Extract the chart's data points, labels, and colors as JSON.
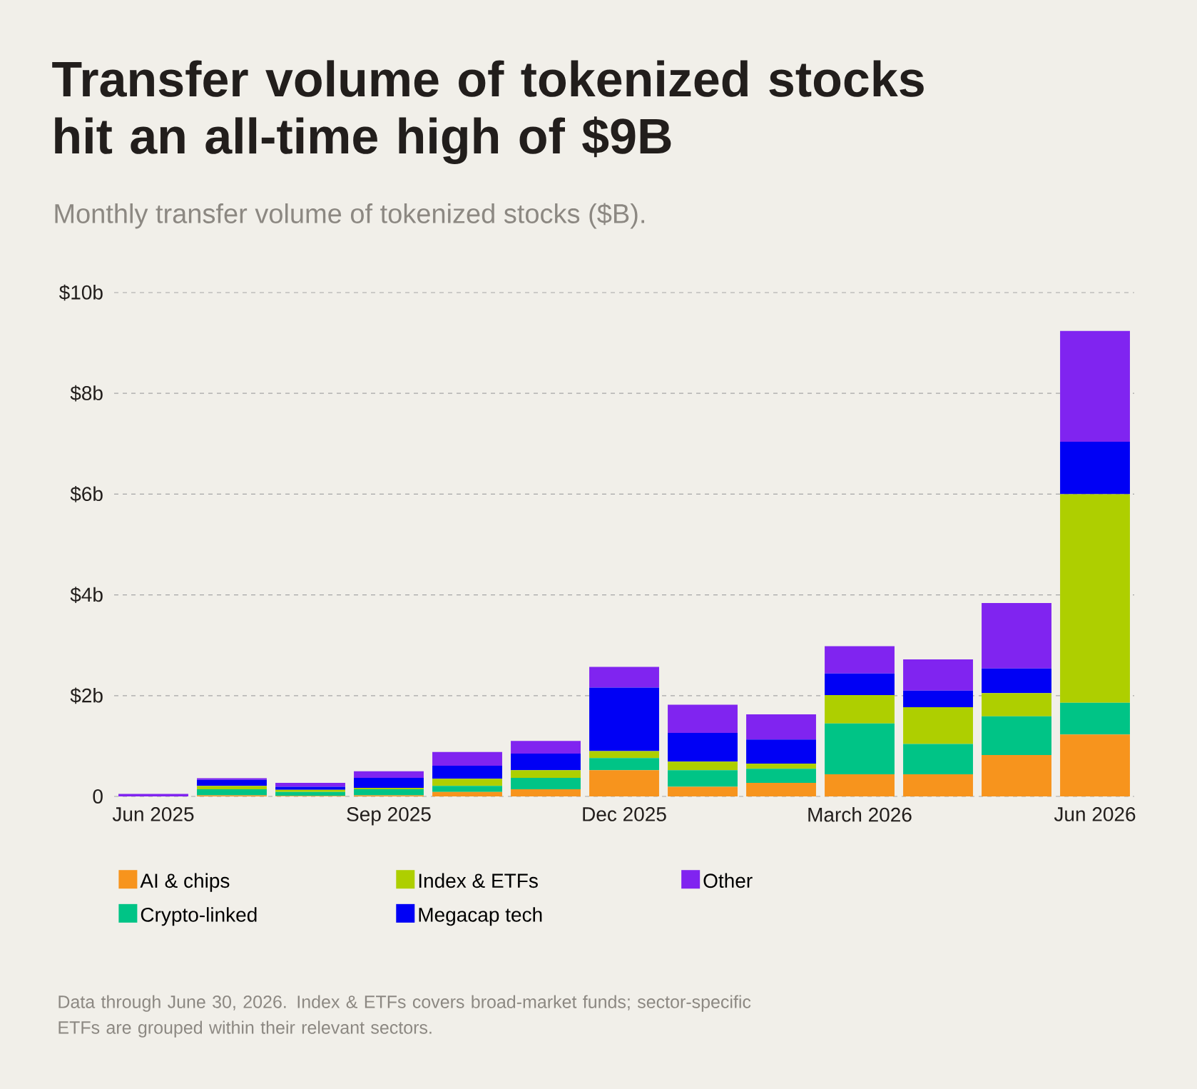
{
  "chart_data": {
    "type": "bar",
    "stacked": true,
    "title": "Transfer volume of tokenized stocks hit an all-time high of $9B",
    "subtitle": "Monthly transfer volume of tokenized stocks ($B).",
    "categories": [
      "Jun  2025",
      null,
      null,
      "Sep 2025",
      null,
      null,
      "Dec 2025",
      null,
      null,
      "March 2026",
      null,
      null,
      "Jun 2026"
    ],
    "series": [
      {
        "name": "AI & chips",
        "color": "#f7941d",
        "values": [
          0,
          0.02,
          0.01,
          0.02,
          0.09,
          0.14,
          0.52,
          0.19,
          0.27,
          0.44,
          0.44,
          0.82,
          1.23
        ]
      },
      {
        "name": "Crypto-linked",
        "color": "#00c486",
        "values": [
          0,
          0.12,
          0.08,
          0.12,
          0.12,
          0.23,
          0.24,
          0.33,
          0.28,
          1.01,
          0.6,
          0.77,
          0.63
        ]
      },
      {
        "name": "Index & ETFs",
        "color": "#aecf00",
        "values": [
          0,
          0.07,
          0.04,
          0.03,
          0.14,
          0.15,
          0.14,
          0.17,
          0.1,
          0.56,
          0.73,
          0.46,
          4.14
        ]
      },
      {
        "name": "Megacap tech",
        "color": "#0000f5",
        "values": [
          0,
          0.12,
          0.06,
          0.2,
          0.26,
          0.33,
          1.26,
          0.57,
          0.48,
          0.43,
          0.33,
          0.49,
          1.04
        ]
      },
      {
        "name": "Other",
        "color": "#8024f0",
        "values": [
          0.05,
          0.03,
          0.08,
          0.13,
          0.27,
          0.25,
          0.41,
          0.56,
          0.5,
          0.54,
          0.62,
          1.3,
          2.2
        ]
      }
    ],
    "ylim": [
      0,
      10
    ],
    "yticks": [
      0,
      {
        "value": 2,
        "label": "$2b"
      },
      {
        "value": 4,
        "label": "$4b"
      },
      {
        "value": 6,
        "label": "$6b"
      },
      {
        "value": 8,
        "label": "$8b"
      },
      {
        "value": 10,
        "label": "$10b"
      }
    ],
    "grid": "y",
    "legend": "bottom",
    "annotations": [
      "Data through June 30, 2026. Index & ETFs covers broad-market funds; sector-specific ETFs are grouped within their relevant sectors."
    ]
  }
}
